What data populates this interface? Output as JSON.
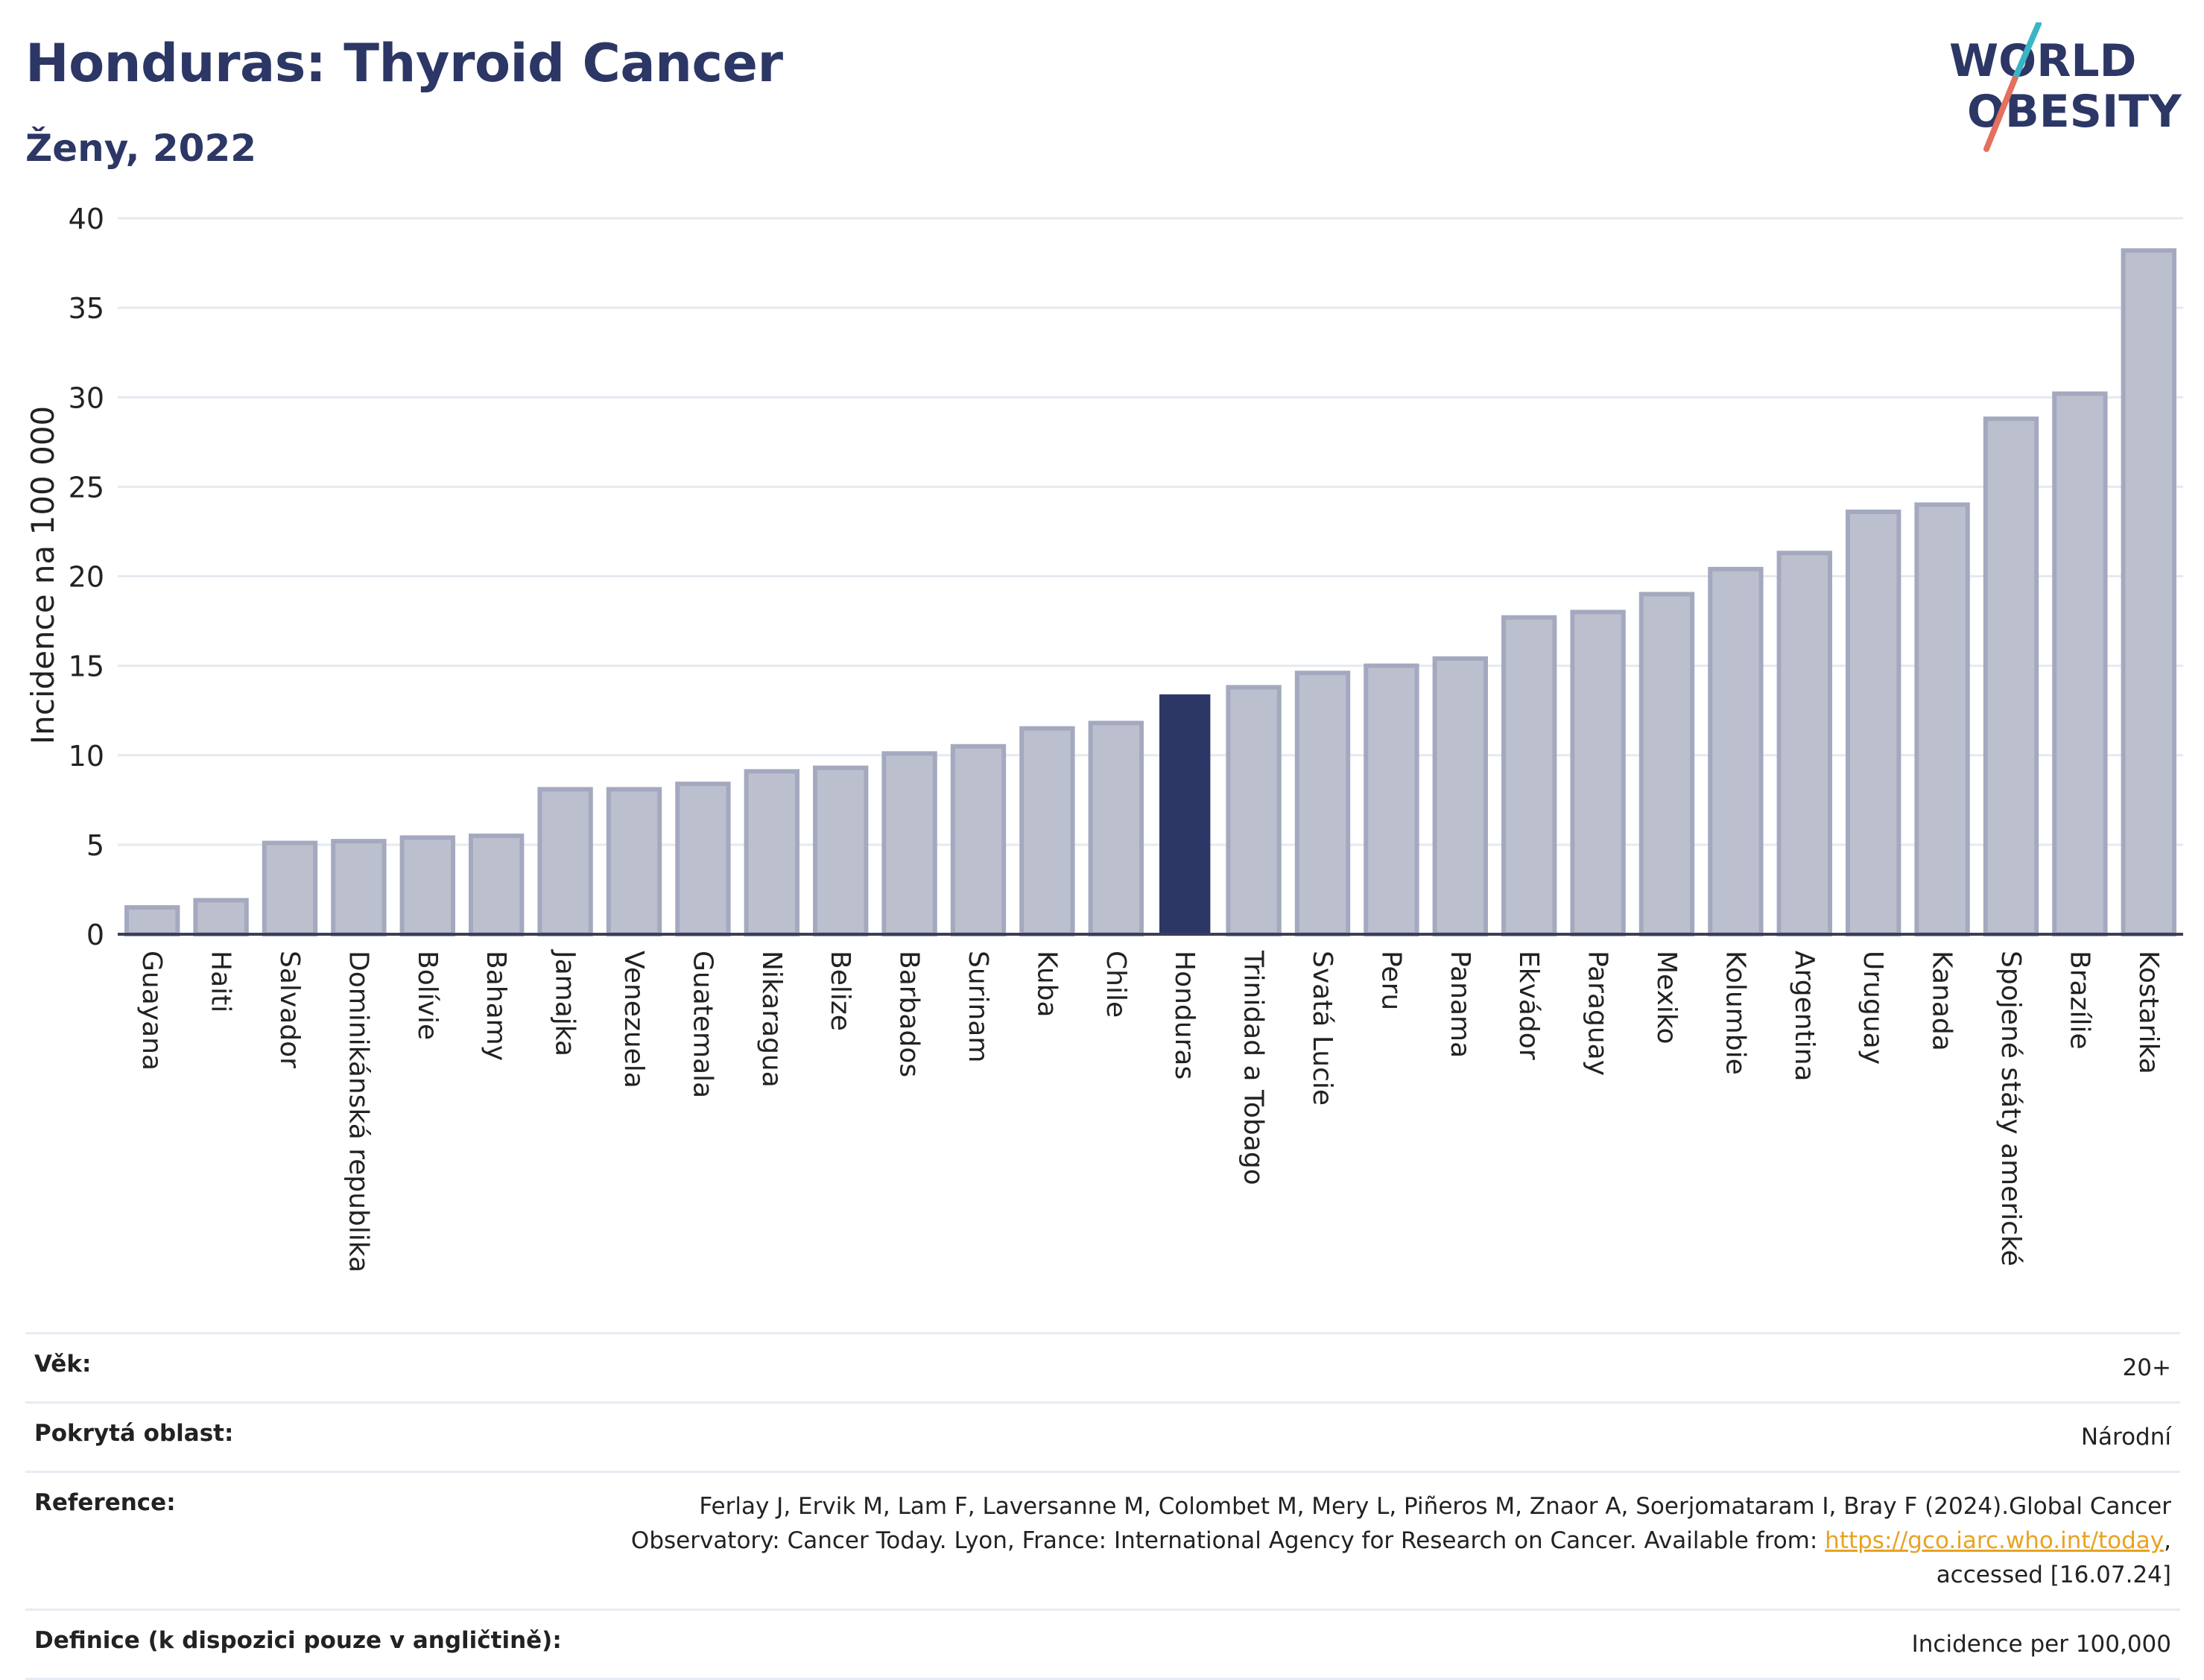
{
  "header": {
    "title": "Honduras: Thyroid Cancer",
    "subtitle": "Ženy, 2022"
  },
  "logo": {
    "line1": "WORLD",
    "line2": "OBESITY",
    "colors": {
      "text": "#2c3766",
      "slash_top": "#3ab5c6",
      "slash_bottom": "#e4705d"
    }
  },
  "colors": {
    "bar": "#bcc0ce",
    "bar_border": "#a4a9bf",
    "highlight": "#2c3766",
    "grid": "#e6e9ef",
    "axis_line": "#3b3f56"
  },
  "chart_data": {
    "type": "bar",
    "title": "Honduras: Thyroid Cancer",
    "subtitle": "Ženy, 2022",
    "ylabel": "Incidence na 100 000",
    "xlabel": "",
    "ylim": [
      0,
      40
    ],
    "yticks": [
      0,
      5,
      10,
      15,
      20,
      25,
      30,
      35,
      40
    ],
    "grid": true,
    "highlight": "Honduras",
    "categories": [
      "Guayana",
      "Haiti",
      "Salvador",
      "Dominikánská republika",
      "Bolívie",
      "Bahamy",
      "Jamajka",
      "Venezuela",
      "Guatemala",
      "Nikaragua",
      "Belize",
      "Barbados",
      "Surinam",
      "Kuba",
      "Chile",
      "Honduras",
      "Trinidad a Tobago",
      "Svatá Lucie",
      "Peru",
      "Panama",
      "Ekvádor",
      "Paraguay",
      "Mexiko",
      "Kolumbie",
      "Argentina",
      "Uruguay",
      "Kanada",
      "Spojené státy americké",
      "Brazílie",
      "Kostarika"
    ],
    "values": [
      1.5,
      1.9,
      5.1,
      5.2,
      5.4,
      5.5,
      8.1,
      8.1,
      8.4,
      9.1,
      9.3,
      10.1,
      10.5,
      11.5,
      11.8,
      13.4,
      13.8,
      14.6,
      15.0,
      15.4,
      17.7,
      18.0,
      19.0,
      20.4,
      21.3,
      23.6,
      24.0,
      28.8,
      30.2,
      38.2
    ]
  },
  "info": {
    "age_label": "Věk:",
    "age_value": "20+",
    "area_label": "Pokrytá oblast:",
    "area_value": "Národní",
    "ref_label": "Reference:",
    "ref_text_1": "Ferlay J, Ervik M, Lam F, Laversanne M, Colombet M, Mery L, Piñeros M, Znaor A, Soerjomataram I, Bray F (2024).Global Cancer",
    "ref_text_2": "Observatory: Cancer Today. Lyon, France: International Agency for Research on Cancer. Available from: ",
    "ref_link": "https://gco.iarc.who.int/today",
    "ref_text_3": ",",
    "ref_text_4": "accessed [16.07.24]",
    "def_label": "Definice (k dispozici pouze v angličtině):",
    "def_value": "Incidence per 100,000"
  }
}
